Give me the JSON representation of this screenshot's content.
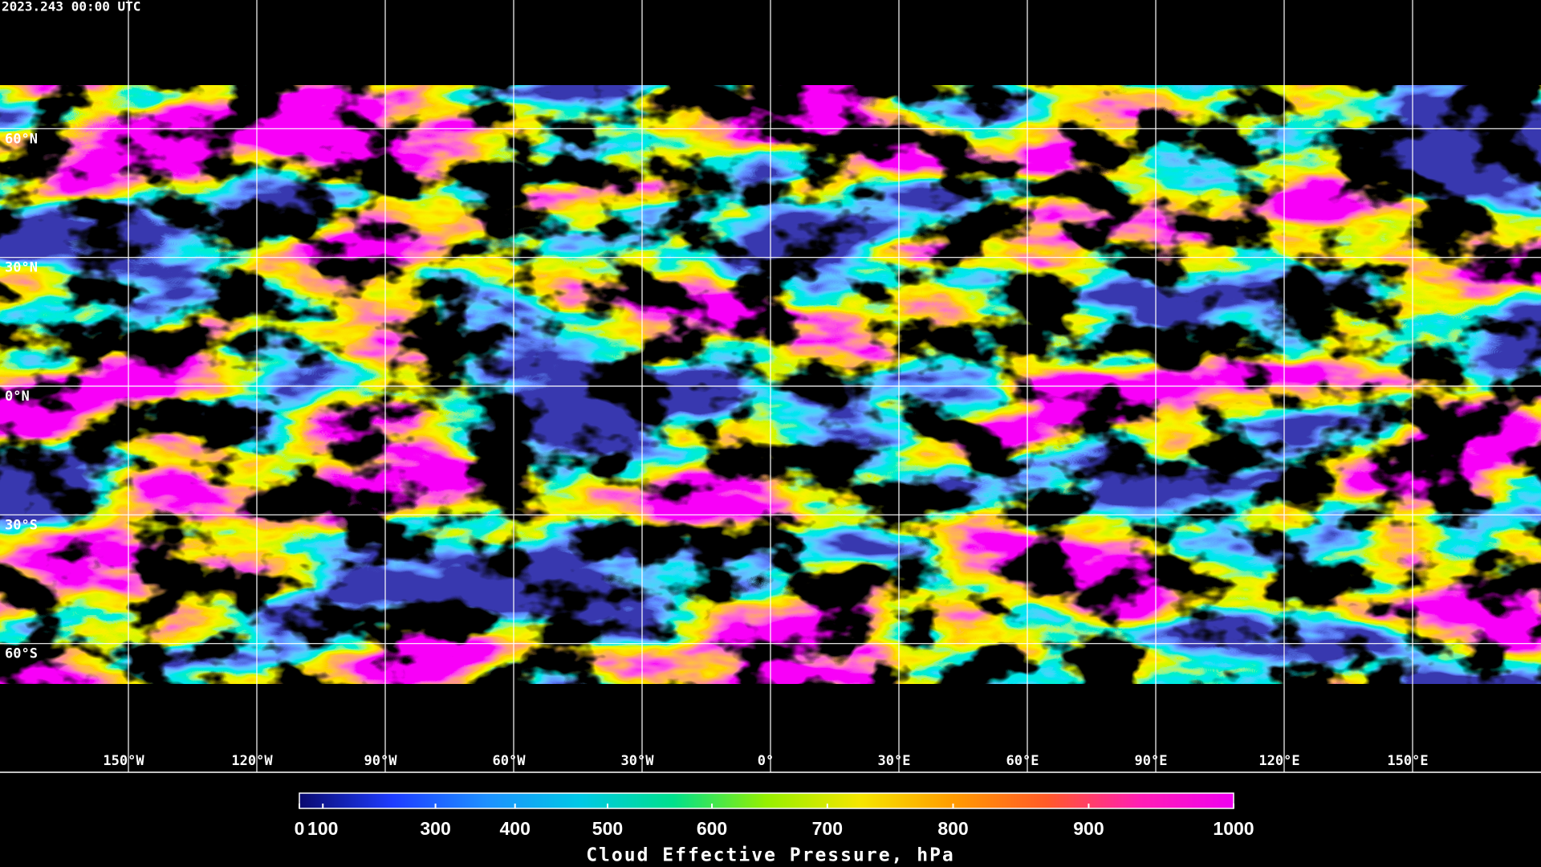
{
  "header": {
    "timestamp": "2023.243 00:00 UTC"
  },
  "map": {
    "xlim": [
      -180,
      180
    ],
    "ylim": [
      -90,
      90
    ],
    "lat_ticks": [
      {
        "value": 60,
        "label": "60°N"
      },
      {
        "value": 30,
        "label": "30°N"
      },
      {
        "value": 0,
        "label": "0°N"
      },
      {
        "value": -30,
        "label": "30°S"
      },
      {
        "value": -60,
        "label": "60°S"
      }
    ],
    "lon_ticks": [
      {
        "value": -150,
        "label": "150°W"
      },
      {
        "value": -120,
        "label": "120°W"
      },
      {
        "value": -90,
        "label": "90°W"
      },
      {
        "value": -60,
        "label": "60°W"
      },
      {
        "value": -30,
        "label": "30°W"
      },
      {
        "value": 0,
        "label": "0°"
      },
      {
        "value": 30,
        "label": "30°E"
      },
      {
        "value": 60,
        "label": "60°E"
      },
      {
        "value": 90,
        "label": "90°E"
      },
      {
        "value": 120,
        "label": "120°E"
      },
      {
        "value": 150,
        "label": "150°E"
      }
    ]
  },
  "colorbar": {
    "title": "Cloud Effective Pressure, hPa",
    "range": [
      0,
      1000
    ],
    "ticks": [
      0,
      100,
      300,
      400,
      500,
      600,
      700,
      800,
      900,
      1000
    ],
    "scale_exponent": 1.6,
    "colors": [
      "#0a0a6e",
      "#1e3cff",
      "#1e90ff",
      "#00c8e6",
      "#00e08c",
      "#96ef00",
      "#f5e600",
      "#ff9b00",
      "#ff5a28",
      "#ff1eb4",
      "#f000f0"
    ]
  }
}
